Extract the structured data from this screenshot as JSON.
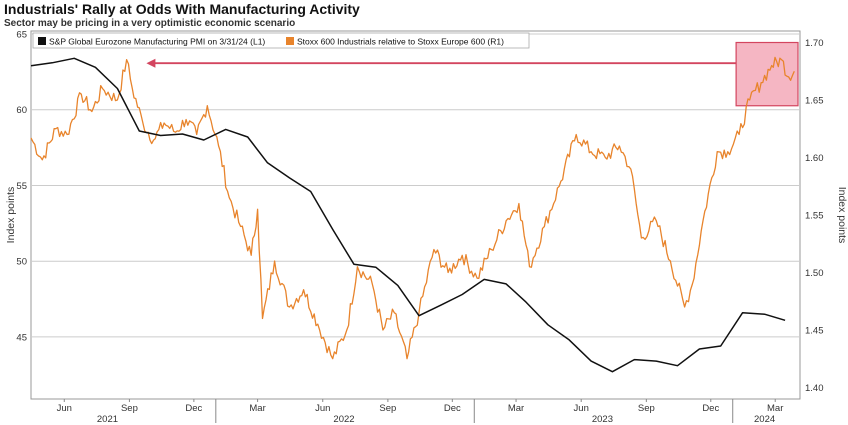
{
  "title": "Industrials' Rally at Odds With Manufacturing Activity",
  "subtitle": "Sector may be pricing in a very optimistic economic scenario",
  "chart_data": {
    "type": "line",
    "legend_position": "top-left",
    "grid": "horizontal",
    "colors": {
      "pmi": "#111111",
      "stoxx": "#e8842c",
      "highlight": "#f2a4b4",
      "arrow": "#d3455f"
    },
    "y_left": {
      "label": "Index points",
      "lim": [
        40.9,
        65.2
      ],
      "ticks": [
        45,
        50,
        55,
        60,
        65
      ]
    },
    "y_right": {
      "label": "Index points",
      "lim": [
        1.39,
        1.71
      ],
      "ticks": [
        "1.40",
        "1.45",
        "1.50",
        "1.55",
        "1.60",
        "1.65",
        "1.70"
      ]
    },
    "x_axis": {
      "range": [
        "2021-04-15",
        "2024-04-05"
      ],
      "month_ticks": [
        {
          "label": "Jun",
          "date": "2021-06-01"
        },
        {
          "label": "Sep",
          "date": "2021-09-01"
        },
        {
          "label": "Dec",
          "date": "2021-12-01"
        },
        {
          "label": "Mar",
          "date": "2022-03-01"
        },
        {
          "label": "Jun",
          "date": "2022-06-01"
        },
        {
          "label": "Sep",
          "date": "2022-09-01"
        },
        {
          "label": "Dec",
          "date": "2022-12-01"
        },
        {
          "label": "Mar",
          "date": "2023-03-01"
        },
        {
          "label": "Jun",
          "date": "2023-06-01"
        },
        {
          "label": "Sep",
          "date": "2023-09-01"
        },
        {
          "label": "Dec",
          "date": "2023-12-01"
        },
        {
          "label": "Mar",
          "date": "2024-03-01"
        }
      ],
      "year_labels": [
        {
          "label": "2021",
          "date": "2021-08-01"
        },
        {
          "label": "2022",
          "date": "2022-07-01"
        },
        {
          "label": "2023",
          "date": "2023-07-01"
        },
        {
          "label": "2024",
          "date": "2024-02-15"
        }
      ],
      "year_boundaries": [
        "2022-01-01",
        "2023-01-01",
        "2024-01-01"
      ]
    },
    "series": [
      {
        "name": "S&P Global Eurozone Manufacturing PMI on 3/31/24 (L1)",
        "axis": "left",
        "points": [
          [
            "2021-04-15",
            62.9
          ],
          [
            "2021-05-15",
            63.1
          ],
          [
            "2021-06-15",
            63.4
          ],
          [
            "2021-07-15",
            62.8
          ],
          [
            "2021-08-15",
            61.4
          ],
          [
            "2021-09-15",
            58.6
          ],
          [
            "2021-10-15",
            58.3
          ],
          [
            "2021-11-15",
            58.4
          ],
          [
            "2021-12-15",
            58.0
          ],
          [
            "2022-01-15",
            58.7
          ],
          [
            "2022-02-15",
            58.2
          ],
          [
            "2022-03-15",
            56.5
          ],
          [
            "2022-04-15",
            55.5
          ],
          [
            "2022-05-15",
            54.6
          ],
          [
            "2022-06-15",
            52.1
          ],
          [
            "2022-07-15",
            49.8
          ],
          [
            "2022-08-15",
            49.6
          ],
          [
            "2022-09-15",
            48.4
          ],
          [
            "2022-10-15",
            46.4
          ],
          [
            "2022-11-15",
            47.1
          ],
          [
            "2022-12-15",
            47.8
          ],
          [
            "2023-01-15",
            48.8
          ],
          [
            "2023-02-15",
            48.5
          ],
          [
            "2023-03-15",
            47.3
          ],
          [
            "2023-04-15",
            45.8
          ],
          [
            "2023-05-15",
            44.8
          ],
          [
            "2023-06-15",
            43.4
          ],
          [
            "2023-07-15",
            42.7
          ],
          [
            "2023-08-15",
            43.5
          ],
          [
            "2023-09-15",
            43.4
          ],
          [
            "2023-10-15",
            43.1
          ],
          [
            "2023-11-15",
            44.2
          ],
          [
            "2023-12-15",
            44.4
          ],
          [
            "2024-01-15",
            46.6
          ],
          [
            "2024-02-15",
            46.5
          ],
          [
            "2024-03-15",
            46.1
          ]
        ]
      },
      {
        "name": "Stoxx 600 Industrials relative to Stoxx Europe 600 (R1)",
        "axis": "right",
        "points": [
          [
            "2021-04-15",
            1.617
          ],
          [
            "2021-05-01",
            1.598
          ],
          [
            "2021-05-20",
            1.625
          ],
          [
            "2021-06-05",
            1.62
          ],
          [
            "2021-06-25",
            1.655
          ],
          [
            "2021-07-10",
            1.64
          ],
          [
            "2021-07-25",
            1.66
          ],
          [
            "2021-08-15",
            1.65
          ],
          [
            "2021-08-28",
            1.685
          ],
          [
            "2021-09-05",
            1.66
          ],
          [
            "2021-09-20",
            1.63
          ],
          [
            "2021-10-05",
            1.615
          ],
          [
            "2021-10-20",
            1.63
          ],
          [
            "2021-11-05",
            1.622
          ],
          [
            "2021-11-20",
            1.633
          ],
          [
            "2021-12-05",
            1.62
          ],
          [
            "2021-12-20",
            1.645
          ],
          [
            "2022-01-05",
            1.61
          ],
          [
            "2022-01-20",
            1.565
          ],
          [
            "2022-02-05",
            1.54
          ],
          [
            "2022-02-20",
            1.515
          ],
          [
            "2022-03-01",
            1.555
          ],
          [
            "2022-03-08",
            1.46
          ],
          [
            "2022-03-25",
            1.51
          ],
          [
            "2022-04-15",
            1.47
          ],
          [
            "2022-05-05",
            1.485
          ],
          [
            "2022-05-25",
            1.455
          ],
          [
            "2022-06-15",
            1.425
          ],
          [
            "2022-07-05",
            1.45
          ],
          [
            "2022-07-20",
            1.505
          ],
          [
            "2022-08-10",
            1.49
          ],
          [
            "2022-08-25",
            1.45
          ],
          [
            "2022-09-10",
            1.465
          ],
          [
            "2022-09-28",
            1.425
          ],
          [
            "2022-10-15",
            1.465
          ],
          [
            "2022-11-05",
            1.52
          ],
          [
            "2022-11-25",
            1.5
          ],
          [
            "2022-12-15",
            1.515
          ],
          [
            "2023-01-05",
            1.495
          ],
          [
            "2023-01-25",
            1.52
          ],
          [
            "2023-02-15",
            1.545
          ],
          [
            "2023-03-05",
            1.56
          ],
          [
            "2023-03-20",
            1.505
          ],
          [
            "2023-04-10",
            1.54
          ],
          [
            "2023-05-01",
            1.575
          ],
          [
            "2023-05-25",
            1.62
          ],
          [
            "2023-06-15",
            1.605
          ],
          [
            "2023-07-05",
            1.6
          ],
          [
            "2023-07-25",
            1.61
          ],
          [
            "2023-08-10",
            1.59
          ],
          [
            "2023-08-25",
            1.53
          ],
          [
            "2023-09-15",
            1.545
          ],
          [
            "2023-10-05",
            1.51
          ],
          [
            "2023-10-25",
            1.47
          ],
          [
            "2023-11-05",
            1.49
          ],
          [
            "2023-11-20",
            1.545
          ],
          [
            "2023-12-10",
            1.605
          ],
          [
            "2023-12-25",
            1.605
          ],
          [
            "2024-01-10",
            1.62
          ],
          [
            "2024-01-25",
            1.65
          ],
          [
            "2024-02-10",
            1.665
          ],
          [
            "2024-02-25",
            1.68
          ],
          [
            "2024-03-10",
            1.685
          ],
          [
            "2024-03-20",
            1.67
          ],
          [
            "2024-03-28",
            1.675
          ]
        ]
      }
    ]
  }
}
